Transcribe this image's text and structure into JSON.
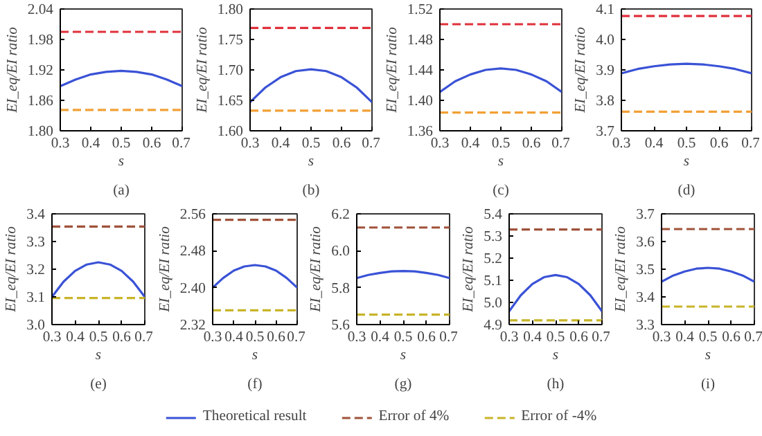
{
  "chart_data": [
    {
      "type": "line",
      "title": "(a)",
      "xlabel": "s",
      "ylabel": "EI_eq/EI ratio",
      "xlim": [
        0.3,
        0.7
      ],
      "xticks": [
        0.3,
        0.4,
        0.5,
        0.6,
        0.7
      ],
      "ylim": [
        1.8,
        2.04
      ],
      "yticks": [
        {
          "value": 1.8,
          "label": "1.80"
        },
        1.86,
        1.92,
        1.98,
        2.04
      ],
      "grid": false,
      "legend": false,
      "line_style": "solid",
      "marker": "none",
      "x": [
        0.3,
        0.35,
        0.4,
        0.45,
        0.5,
        0.55,
        0.6,
        0.65,
        0.7
      ],
      "series": [
        {
          "color": "#3a52d6",
          "values": [
            1.888,
            1.901,
            1.911,
            1.916,
            1.918,
            1.916,
            1.911,
            1.901,
            1.888
          ]
        },
        {
          "color": "#e0303c",
          "line_style": "dashed",
          "values": [
            1.995,
            1.995,
            1.995,
            1.995,
            1.995,
            1.995,
            1.995,
            1.995,
            1.995
          ]
        },
        {
          "color": "#f2a035",
          "line_style": "dashed",
          "values": [
            1.841,
            1.841,
            1.841,
            1.841,
            1.841,
            1.841,
            1.841,
            1.841,
            1.841
          ]
        }
      ]
    },
    {
      "type": "line",
      "title": "(b)",
      "xlabel": "s",
      "ylabel": "EI_eq/EI ratio",
      "xlim": [
        0.3,
        0.7
      ],
      "xticks": [
        0.3,
        0.4,
        0.5,
        0.6,
        0.7
      ],
      "ylim": [
        1.6,
        1.8
      ],
      "yticks": [
        {
          "value": 1.6,
          "label": "1.60"
        },
        1.65,
        {
          "value": 1.7,
          "label": "1.70"
        },
        1.75,
        {
          "value": 1.8,
          "label": "1.80"
        }
      ],
      "grid": false,
      "legend": false,
      "line_style": "solid",
      "marker": "none",
      "x": [
        0.3,
        0.35,
        0.4,
        0.45,
        0.5,
        0.55,
        0.6,
        0.65,
        0.7
      ],
      "series": [
        {
          "color": "#3a52d6",
          "values": [
            1.647,
            1.671,
            1.688,
            1.698,
            1.701,
            1.698,
            1.688,
            1.671,
            1.647
          ]
        },
        {
          "color": "#e0303c",
          "line_style": "dashed",
          "values": [
            1.769,
            1.769,
            1.769,
            1.769,
            1.769,
            1.769,
            1.769,
            1.769,
            1.769
          ]
        },
        {
          "color": "#f2a035",
          "line_style": "dashed",
          "values": [
            1.633,
            1.633,
            1.633,
            1.633,
            1.633,
            1.633,
            1.633,
            1.633,
            1.633
          ]
        }
      ]
    },
    {
      "type": "line",
      "title": "(c)",
      "xlabel": "s",
      "ylabel": "EI_eq/EI ratio",
      "xlim": [
        0.3,
        0.7
      ],
      "xticks": [
        0.3,
        0.4,
        0.5,
        0.6,
        0.7
      ],
      "ylim": [
        1.36,
        1.52
      ],
      "yticks": [
        1.36,
        {
          "value": 1.4,
          "label": "1.40"
        },
        1.44,
        1.48,
        1.52
      ],
      "grid": false,
      "legend": false,
      "line_style": "solid",
      "marker": "none",
      "x": [
        0.3,
        0.35,
        0.4,
        0.45,
        0.5,
        0.55,
        0.6,
        0.65,
        0.7
      ],
      "series": [
        {
          "color": "#3a52d6",
          "values": [
            1.411,
            1.425,
            1.434,
            1.44,
            1.442,
            1.44,
            1.434,
            1.425,
            1.411
          ]
        },
        {
          "color": "#e0303c",
          "line_style": "dashed",
          "values": [
            1.5,
            1.5,
            1.5,
            1.5,
            1.5,
            1.5,
            1.5,
            1.5,
            1.5
          ]
        },
        {
          "color": "#f2a035",
          "line_style": "dashed",
          "values": [
            1.384,
            1.384,
            1.384,
            1.384,
            1.384,
            1.384,
            1.384,
            1.384,
            1.384
          ]
        }
      ]
    },
    {
      "type": "line",
      "title": "(d)",
      "xlabel": "s",
      "ylabel": "EI_eq/EI ratio",
      "xlim": [
        0.3,
        0.7
      ],
      "xticks": [
        0.3,
        0.4,
        0.5,
        0.6,
        0.7
      ],
      "ylim": [
        3.7,
        4.1
      ],
      "yticks": [
        3.7,
        3.8,
        3.9,
        {
          "value": 4,
          "label": "4.0"
        },
        4.1
      ],
      "grid": false,
      "legend": false,
      "line_style": "solid",
      "marker": "none",
      "x": [
        0.3,
        0.35,
        0.4,
        0.45,
        0.5,
        0.55,
        0.6,
        0.65,
        0.7
      ],
      "series": [
        {
          "color": "#3a52d6",
          "values": [
            3.889,
            3.903,
            3.912,
            3.918,
            3.92,
            3.918,
            3.912,
            3.903,
            3.889
          ]
        },
        {
          "color": "#e0303c",
          "line_style": "dashed",
          "values": [
            4.077,
            4.077,
            4.077,
            4.077,
            4.077,
            4.077,
            4.077,
            4.077,
            4.077
          ]
        },
        {
          "color": "#f2a035",
          "line_style": "dashed",
          "values": [
            3.763,
            3.763,
            3.763,
            3.763,
            3.763,
            3.763,
            3.763,
            3.763,
            3.763
          ]
        }
      ]
    },
    {
      "type": "line",
      "title": "(e)",
      "xlabel": "s",
      "ylabel": "EI_eq/EI ratio",
      "xlim": [
        0.3,
        0.7
      ],
      "xticks": [
        0.3,
        0.4,
        0.5,
        0.6,
        0.7
      ],
      "ylim": [
        3.0,
        3.4
      ],
      "yticks": [
        {
          "value": 3,
          "label": "3.0"
        },
        3.1,
        3.2,
        3.3,
        3.4
      ],
      "grid": false,
      "legend": false,
      "line_style": "solid",
      "marker": "none",
      "x": [
        0.3,
        0.35,
        0.4,
        0.45,
        0.5,
        0.55,
        0.6,
        0.65,
        0.7
      ],
      "series": [
        {
          "color": "#3a52d6",
          "values": [
            3.1,
            3.155,
            3.194,
            3.217,
            3.225,
            3.217,
            3.194,
            3.155,
            3.1
          ]
        },
        {
          "color": "#a0523a",
          "line_style": "dashed",
          "values": [
            3.354,
            3.354,
            3.354,
            3.354,
            3.354,
            3.354,
            3.354,
            3.354,
            3.354
          ]
        },
        {
          "color": "#c8b428",
          "line_style": "dashed",
          "values": [
            3.096,
            3.096,
            3.096,
            3.096,
            3.096,
            3.096,
            3.096,
            3.096,
            3.096
          ]
        }
      ]
    },
    {
      "type": "line",
      "title": "(f)",
      "xlabel": "s",
      "ylabel": "EI_eq/EI ratio",
      "xlim": [
        0.3,
        0.7
      ],
      "xticks": [
        0.3,
        0.4,
        0.5,
        0.6,
        0.7
      ],
      "ylim": [
        2.32,
        2.56
      ],
      "yticks": [
        2.32,
        {
          "value": 2.4,
          "label": "2.40"
        },
        2.48,
        2.56
      ],
      "grid": false,
      "legend": false,
      "line_style": "solid",
      "marker": "none",
      "x": [
        0.3,
        0.35,
        0.4,
        0.45,
        0.5,
        0.55,
        0.6,
        0.65,
        0.7
      ],
      "series": [
        {
          "color": "#3a52d6",
          "values": [
            2.4,
            2.421,
            2.437,
            2.446,
            2.449,
            2.446,
            2.437,
            2.421,
            2.4
          ]
        },
        {
          "color": "#a0523a",
          "line_style": "dashed",
          "values": [
            2.547,
            2.547,
            2.547,
            2.547,
            2.547,
            2.547,
            2.547,
            2.547,
            2.547
          ]
        },
        {
          "color": "#c8b428",
          "line_style": "dashed",
          "values": [
            2.351,
            2.351,
            2.351,
            2.351,
            2.351,
            2.351,
            2.351,
            2.351,
            2.351
          ]
        }
      ]
    },
    {
      "type": "line",
      "title": "(g)",
      "xlabel": "s",
      "ylabel": "EI_eq/EI ratio",
      "xlim": [
        0.3,
        0.7
      ],
      "xticks": [
        0.3,
        0.4,
        0.5,
        0.6,
        0.7
      ],
      "ylim": [
        5.6,
        6.2
      ],
      "yticks": [
        5.6,
        5.8,
        {
          "value": 6,
          "label": "6.0"
        },
        6.2
      ],
      "grid": false,
      "legend": "bottom",
      "line_style": "solid",
      "marker": "none",
      "x": [
        0.3,
        0.35,
        0.4,
        0.45,
        0.5,
        0.55,
        0.6,
        0.65,
        0.7
      ],
      "series": [
        {
          "name": "Theoretical result",
          "color": "#3a52d6",
          "values": [
            5.852,
            5.869,
            5.88,
            5.888,
            5.89,
            5.888,
            5.88,
            5.869,
            5.852
          ]
        },
        {
          "name": "Error of 4%",
          "color": "#a0523a",
          "line_style": "dashed",
          "values": [
            6.126,
            6.126,
            6.126,
            6.126,
            6.126,
            6.126,
            6.126,
            6.126,
            6.126
          ]
        },
        {
          "name": "Error of -4%",
          "color": "#c8b428",
          "line_style": "dashed",
          "values": [
            5.654,
            5.654,
            5.654,
            5.654,
            5.654,
            5.654,
            5.654,
            5.654,
            5.654
          ]
        }
      ]
    },
    {
      "type": "line",
      "title": "(h)",
      "xlabel": "s",
      "ylabel": "EI_eq/EI ratio",
      "xlim": [
        0.3,
        0.7
      ],
      "xticks": [
        0.3,
        0.4,
        0.5,
        0.6,
        0.7
      ],
      "ylim": [
        4.9,
        5.4
      ],
      "yticks": [
        4.9,
        {
          "value": 5,
          "label": "5.0"
        },
        5.1,
        5.2,
        5.3,
        5.4
      ],
      "grid": false,
      "legend": false,
      "line_style": "solid",
      "marker": "none",
      "x": [
        0.3,
        0.35,
        0.4,
        0.45,
        0.5,
        0.55,
        0.6,
        0.65,
        0.7
      ],
      "series": [
        {
          "color": "#3a52d6",
          "values": [
            4.96,
            5.032,
            5.083,
            5.114,
            5.124,
            5.114,
            5.083,
            5.032,
            4.96
          ]
        },
        {
          "color": "#a0523a",
          "line_style": "dashed",
          "values": [
            5.329,
            5.329,
            5.329,
            5.329,
            5.329,
            5.329,
            5.329,
            5.329,
            5.329
          ]
        },
        {
          "color": "#c8b428",
          "line_style": "dashed",
          "values": [
            4.919,
            4.919,
            4.919,
            4.919,
            4.919,
            4.919,
            4.919,
            4.919,
            4.919
          ]
        }
      ]
    },
    {
      "type": "line",
      "title": "(i)",
      "xlabel": "s",
      "ylabel": "EI_eq/EI ratio",
      "xlim": [
        0.3,
        0.7
      ],
      "xticks": [
        0.3,
        0.4,
        0.5,
        0.6,
        0.7
      ],
      "ylim": [
        3.3,
        3.7
      ],
      "yticks": [
        3.3,
        3.4,
        3.5,
        3.6,
        3.7
      ],
      "grid": false,
      "legend": false,
      "line_style": "solid",
      "marker": "none",
      "x": [
        0.3,
        0.35,
        0.4,
        0.45,
        0.5,
        0.55,
        0.6,
        0.65,
        0.7
      ],
      "series": [
        {
          "color": "#3a52d6",
          "values": [
            3.455,
            3.477,
            3.492,
            3.502,
            3.505,
            3.502,
            3.492,
            3.477,
            3.455
          ]
        },
        {
          "color": "#a0523a",
          "line_style": "dashed",
          "values": [
            3.645,
            3.645,
            3.645,
            3.645,
            3.645,
            3.645,
            3.645,
            3.645,
            3.645
          ]
        },
        {
          "color": "#c8b428",
          "line_style": "dashed",
          "values": [
            3.365,
            3.365,
            3.365,
            3.365,
            3.365,
            3.365,
            3.365,
            3.365,
            3.365
          ]
        }
      ]
    }
  ]
}
